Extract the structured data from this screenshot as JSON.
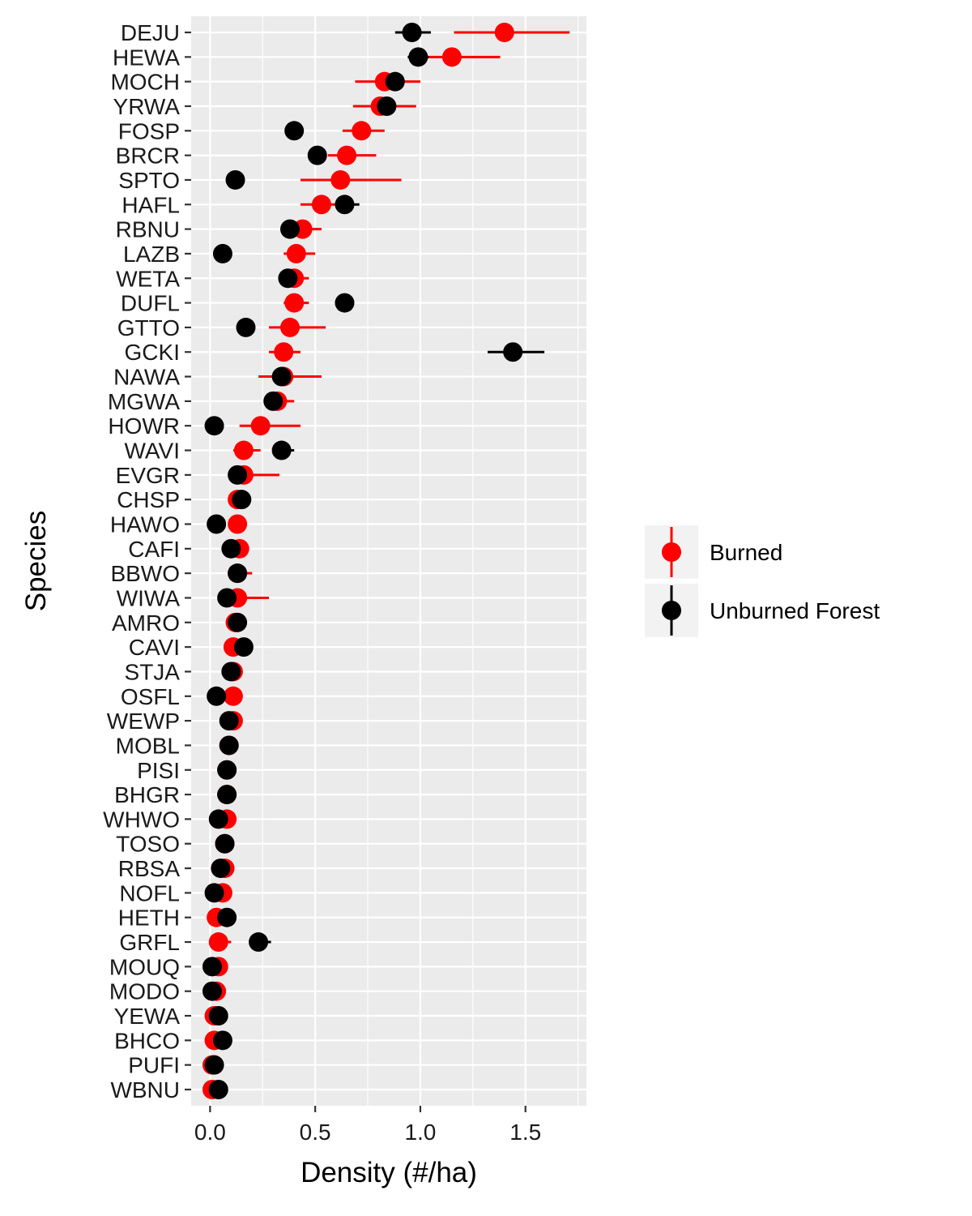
{
  "chart_data": {
    "type": "scatter",
    "xlabel": "Density (#/ha)",
    "ylabel": "Species",
    "xlim": [
      -0.09,
      1.79
    ],
    "x_ticks": [
      "0.0",
      "0.5",
      "1.0",
      "1.5"
    ],
    "x_tick_values": [
      0,
      0.5,
      1.0,
      1.5
    ],
    "grid": true,
    "legend_position": "right",
    "categories": [
      "DEJU",
      "HEWA",
      "MOCH",
      "YRWA",
      "FOSP",
      "BRCR",
      "SPTO",
      "HAFL",
      "RBNU",
      "LAZB",
      "WETA",
      "DUFL",
      "GTTO",
      "GCKI",
      "NAWA",
      "MGWA",
      "HOWR",
      "WAVI",
      "EVGR",
      "CHSP",
      "HAWO",
      "CAFI",
      "BBWO",
      "WIWA",
      "AMRO",
      "CAVI",
      "STJA",
      "OSFL",
      "WEWP",
      "MOBL",
      "PISI",
      "BHGR",
      "WHWO",
      "TOSO",
      "RBSA",
      "NOFL",
      "HETH",
      "GRFL",
      "MOUQ",
      "MODO",
      "YEWA",
      "BHCO",
      "PUFI",
      "WBNU"
    ],
    "series": [
      {
        "name": "Burned",
        "color": "#ff0000",
        "values": [
          1.4,
          1.15,
          0.83,
          0.81,
          0.72,
          0.65,
          0.62,
          0.53,
          0.44,
          0.41,
          0.4,
          0.4,
          0.38,
          0.35,
          0.35,
          0.32,
          0.24,
          0.16,
          0.16,
          0.13,
          0.13,
          0.14,
          0.13,
          0.13,
          0.12,
          0.11,
          0.11,
          0.11,
          0.11,
          0.09,
          0.08,
          0.08,
          0.08,
          0.07,
          0.07,
          0.06,
          0.03,
          0.04,
          0.04,
          0.03,
          0.02,
          0.02,
          0.01,
          0.01
        ],
        "lower": [
          1.16,
          0.97,
          0.69,
          0.68,
          0.63,
          0.56,
          0.43,
          0.43,
          0.38,
          0.35,
          0.36,
          0.35,
          0.28,
          0.28,
          0.23,
          0.26,
          0.14,
          0.11,
          0.09,
          0.11,
          0.11,
          0.12,
          0.1,
          0.09,
          0.1,
          0.1,
          0.09,
          0.09,
          0.09,
          0.08,
          0.07,
          0.07,
          0.07,
          0.06,
          0.06,
          0.05,
          0.02,
          0.02,
          0.03,
          0.02,
          0.01,
          0.01,
          0.0,
          0.0
        ],
        "upper": [
          1.71,
          1.38,
          1.0,
          0.98,
          0.83,
          0.79,
          0.91,
          0.65,
          0.53,
          0.5,
          0.47,
          0.47,
          0.55,
          0.43,
          0.53,
          0.4,
          0.43,
          0.24,
          0.33,
          0.15,
          0.15,
          0.17,
          0.2,
          0.28,
          0.14,
          0.13,
          0.13,
          0.13,
          0.13,
          0.1,
          0.09,
          0.09,
          0.09,
          0.08,
          0.08,
          0.07,
          0.05,
          0.1,
          0.05,
          0.04,
          0.03,
          0.03,
          0.02,
          0.02
        ]
      },
      {
        "name": "Unburned Forest",
        "color": "#000000",
        "values": [
          0.96,
          0.99,
          0.88,
          0.84,
          0.4,
          0.51,
          0.12,
          0.64,
          0.38,
          0.06,
          0.37,
          0.64,
          0.17,
          1.44,
          0.34,
          0.3,
          0.02,
          0.34,
          0.13,
          0.15,
          0.03,
          0.1,
          0.13,
          0.08,
          0.13,
          0.16,
          0.1,
          0.03,
          0.09,
          0.09,
          0.08,
          0.08,
          0.04,
          0.07,
          0.05,
          0.02,
          0.08,
          0.23,
          0.01,
          0.01,
          0.04,
          0.06,
          0.02,
          0.04
        ],
        "lower": [
          0.88,
          0.94,
          0.84,
          0.8,
          0.37,
          0.48,
          0.1,
          0.6,
          0.35,
          0.05,
          0.34,
          0.62,
          0.15,
          1.32,
          0.31,
          0.27,
          0.01,
          0.31,
          0.11,
          0.14,
          0.02,
          0.09,
          0.12,
          0.07,
          0.12,
          0.15,
          0.09,
          0.02,
          0.08,
          0.08,
          0.07,
          0.07,
          0.03,
          0.06,
          0.04,
          0.01,
          0.07,
          0.21,
          0.0,
          0.0,
          0.03,
          0.05,
          0.01,
          0.03
        ],
        "upper": [
          1.05,
          1.04,
          0.92,
          0.88,
          0.43,
          0.55,
          0.14,
          0.71,
          0.41,
          0.07,
          0.4,
          0.67,
          0.19,
          1.59,
          0.37,
          0.33,
          0.03,
          0.4,
          0.15,
          0.16,
          0.04,
          0.11,
          0.14,
          0.09,
          0.14,
          0.17,
          0.11,
          0.04,
          0.1,
          0.1,
          0.09,
          0.09,
          0.05,
          0.08,
          0.06,
          0.03,
          0.09,
          0.29,
          0.02,
          0.02,
          0.05,
          0.07,
          0.03,
          0.05
        ]
      }
    ]
  }
}
